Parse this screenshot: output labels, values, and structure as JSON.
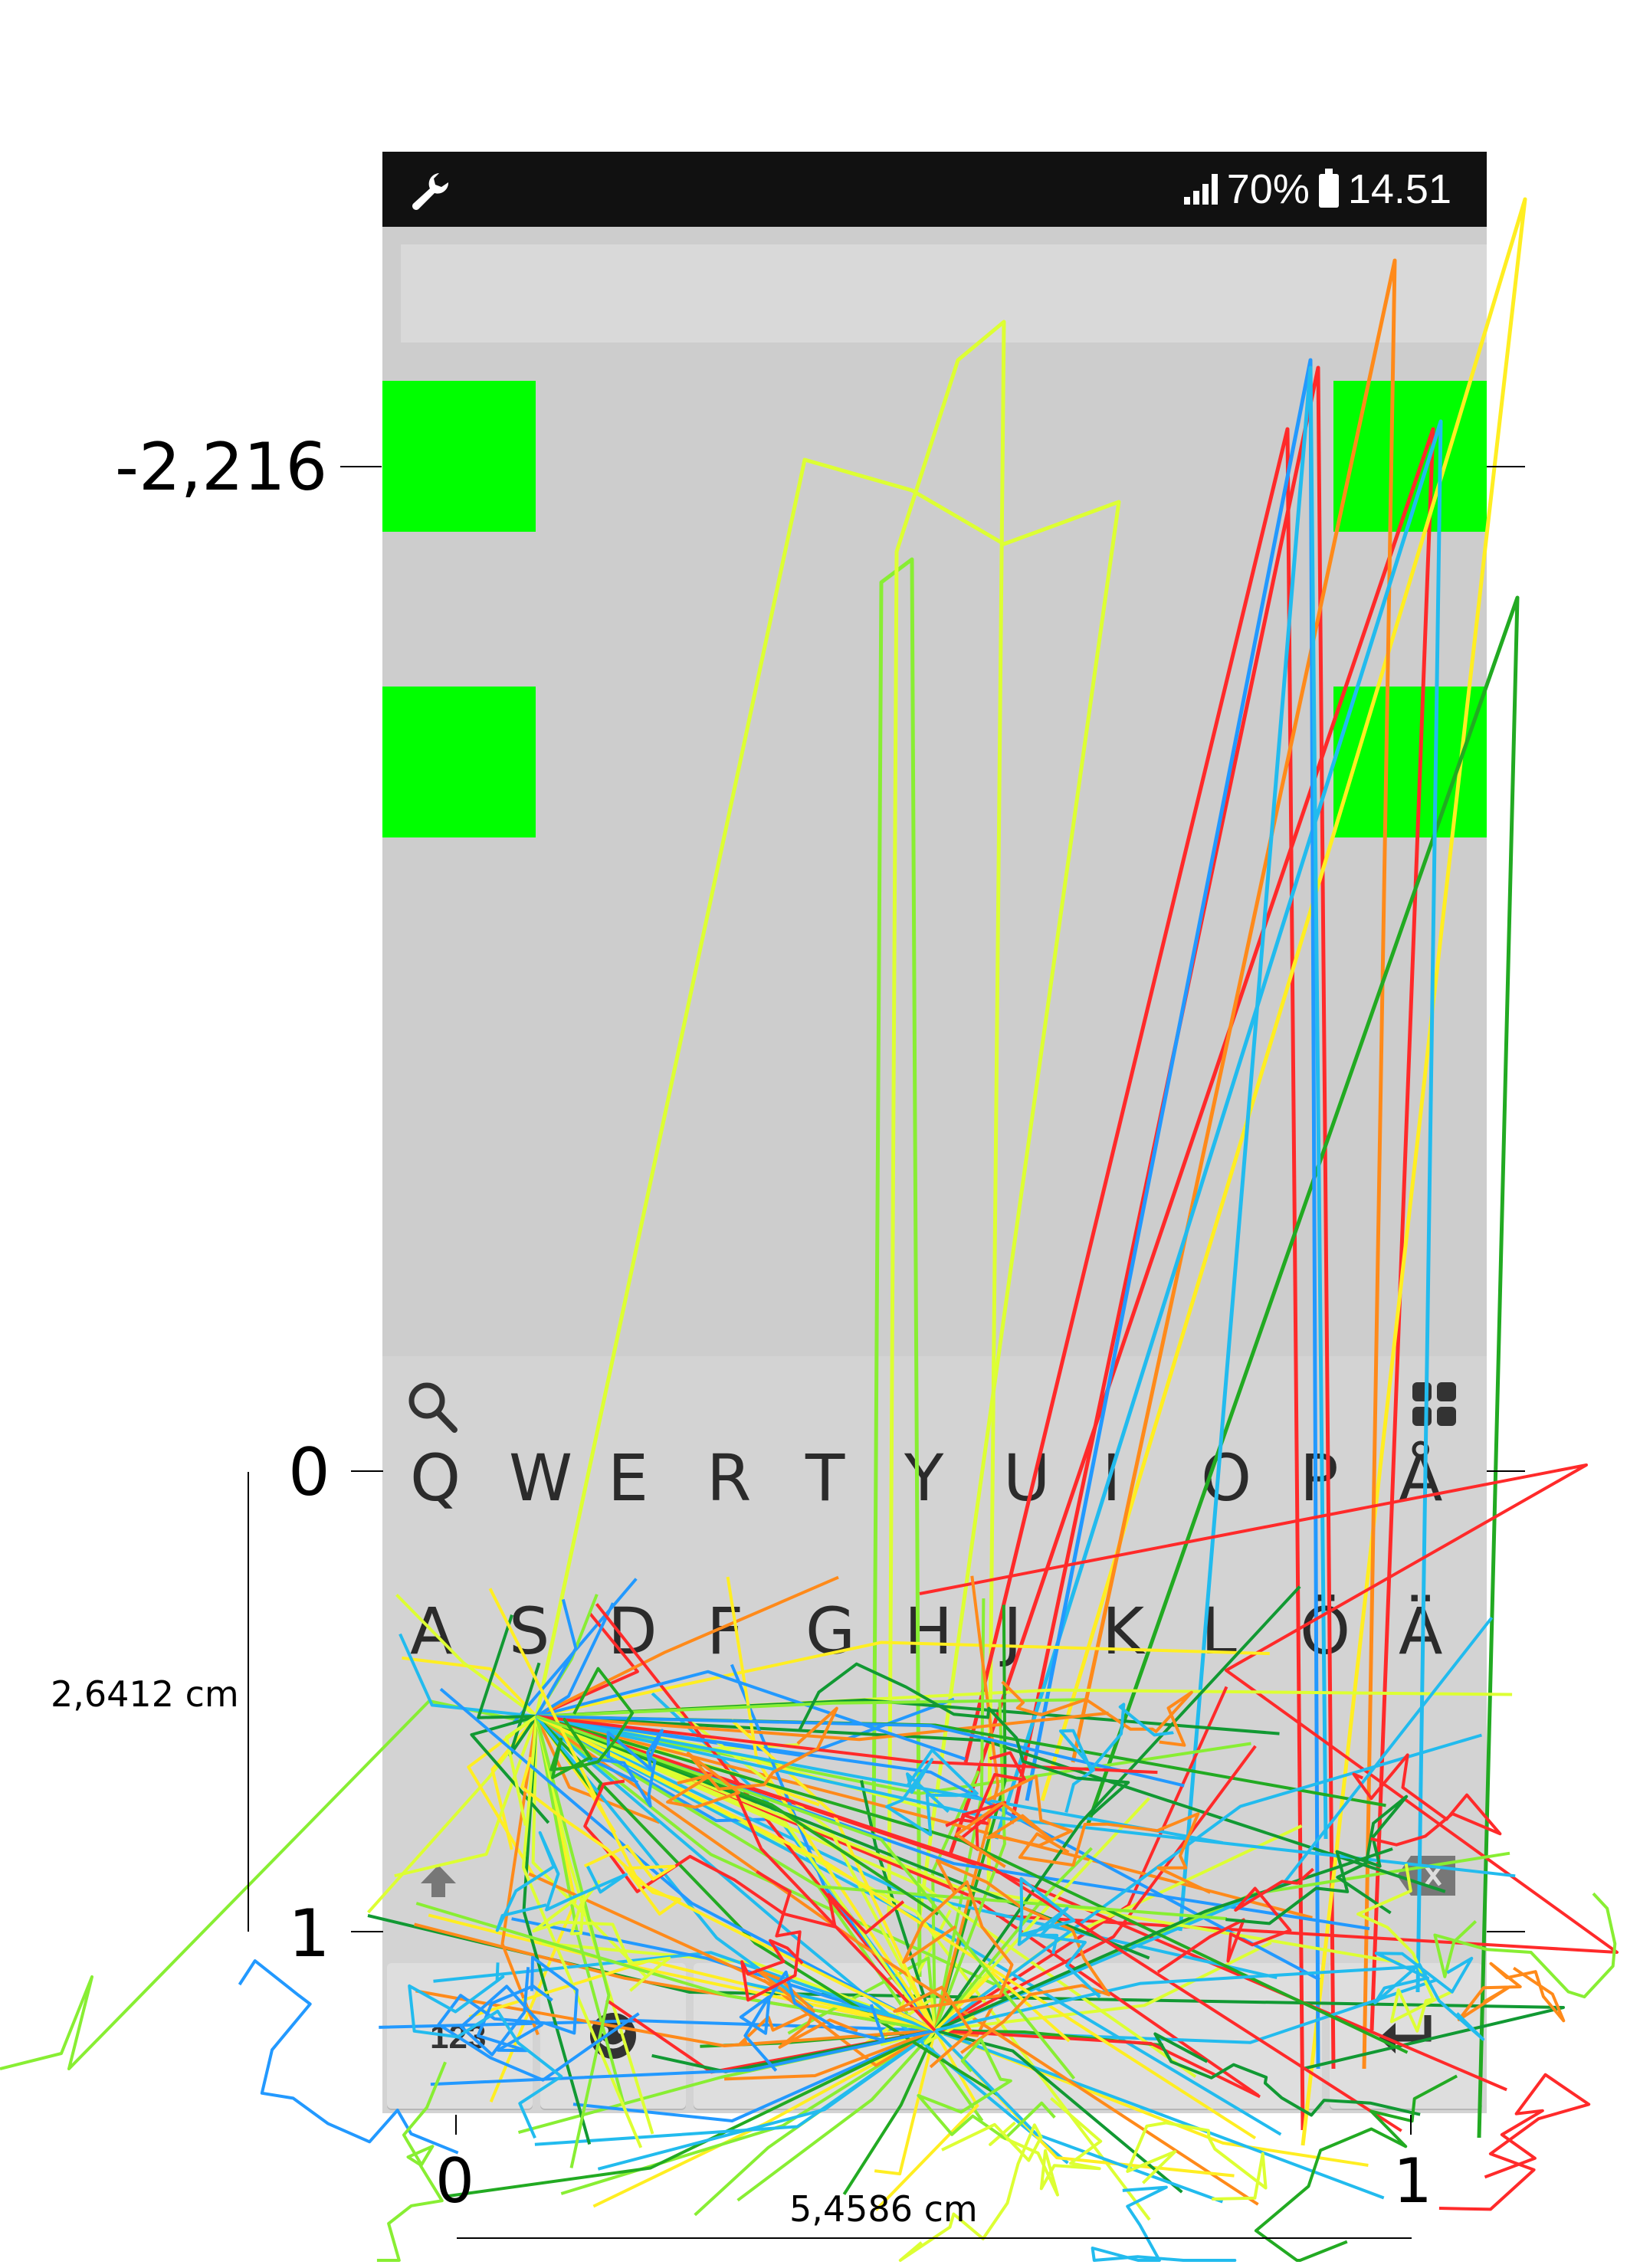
{
  "statusbar": {
    "battery_percent": "70%",
    "time": "14.51",
    "settings_icon": "wrench-icon",
    "signal_icon": "signal-icon",
    "battery_icon": "battery-icon"
  },
  "keyboard": {
    "search_icon": "search-icon",
    "apps_icon": "apps-grid-icon",
    "row1": [
      "Q",
      "W",
      "E",
      "R",
      "T",
      "Y",
      "U",
      "I",
      "O",
      "P",
      "Å"
    ],
    "row2": [
      "A",
      "S",
      "D",
      "F",
      "G",
      "H",
      "J",
      "K",
      "L",
      "Ö",
      "Ä"
    ],
    "numbers_key": "123",
    "backspace_icon": "backspace-icon",
    "shift_icon": "shift-icon",
    "emoji_icon": "emoji-icon",
    "enter_icon": "enter-icon"
  },
  "axes": {
    "y_top_value": "-2,216",
    "y_zero": "0",
    "y_one": "1",
    "y_span_label": "2,6412 cm",
    "x_zero": "0",
    "x_one": "1",
    "x_span_label": "5,4586 cm"
  },
  "colors": {
    "target_green": "#00ff00",
    "trace_palette": [
      "#ff2a2a",
      "#ff8a1a",
      "#ffee22",
      "#ddff33",
      "#88ee33",
      "#22aa22",
      "#119933",
      "#22bbee",
      "#2299ff"
    ]
  }
}
